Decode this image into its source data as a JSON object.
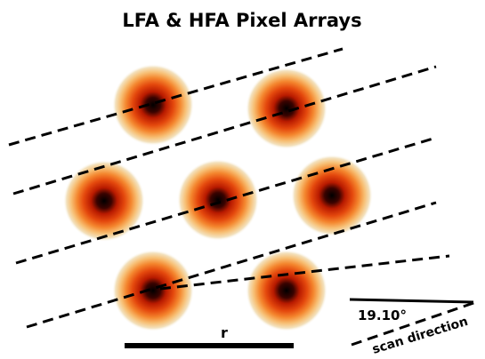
{
  "title": "LFA & HFA Pixel Arrays",
  "scale_label": "r",
  "angle_label": "19.10°",
  "direction_label": "scan direction"
}
